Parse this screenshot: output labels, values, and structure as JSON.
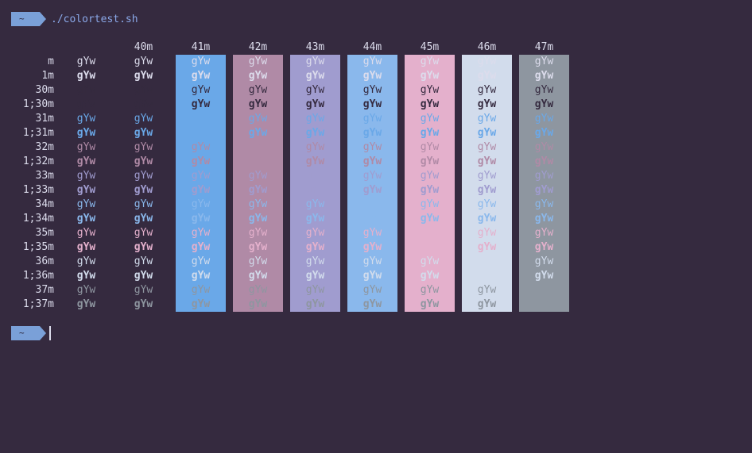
{
  "prompt": {
    "dir": "~",
    "command": "./colortest.sh"
  },
  "sample_text": "gYw",
  "column_headers": [
    "",
    "40m",
    "41m",
    "42m",
    "43m",
    "44m",
    "45m",
    "46m",
    "47m"
  ],
  "backgrounds": {
    "41m": "#6aa8e8",
    "42m": "#b08aa6",
    "43m": "#a09ccf",
    "44m": "#8ab8ec",
    "45m": "#e4b0cc",
    "46m": "#d2dcec",
    "47m": "#8e96a0"
  },
  "row_labels": [
    "m",
    "1m",
    "30m",
    "1;30m",
    "31m",
    "1;31m",
    "32m",
    "1;32m",
    "33m",
    "1;33m",
    "34m",
    "1;34m",
    "35m",
    "1;35m",
    "36m",
    "1;36m",
    "37m",
    "1;37m"
  ],
  "fg_colors": {
    "m": "#dcdcec",
    "1m": "#dcdcec",
    "30m": "#352a3f",
    "1;30m": "#352a3f",
    "31m": "#6aa8e8",
    "1;31m": "#6aa8e8",
    "32m": "#b08aa6",
    "1;32m": "#b08aa6",
    "33m": "#a09ccf",
    "1;33m": "#a09ccf",
    "34m": "#8ab8ec",
    "1;34m": "#8ab8ec",
    "35m": "#e4b0cc",
    "1;35m": "#e4b0cc",
    "36m": "#d2dcec",
    "1;36m": "#d2dcec",
    "37m": "#8e96a0",
    "1;37m": "#8e96a0"
  },
  "second_prompt": {
    "dir": "~"
  }
}
